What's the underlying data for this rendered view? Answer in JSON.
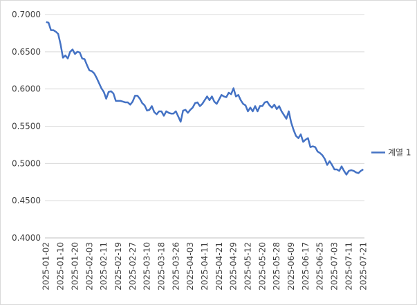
{
  "chart_data": {
    "type": "line",
    "categories": [
      "2025-01-02",
      null,
      null,
      null,
      null,
      null,
      "2025-01-10",
      null,
      null,
      null,
      null,
      null,
      "2025-01-20",
      null,
      null,
      null,
      null,
      null,
      "2025-02-03",
      null,
      null,
      null,
      null,
      null,
      "2025-02-11",
      null,
      null,
      null,
      null,
      null,
      "2025-02-19",
      null,
      null,
      null,
      null,
      null,
      "2025-02-27",
      null,
      null,
      null,
      null,
      null,
      "2025-03-10",
      null,
      null,
      null,
      null,
      null,
      "2025-03-18",
      null,
      null,
      null,
      null,
      null,
      "2025-03-26",
      null,
      null,
      null,
      null,
      null,
      "2025-04-03",
      null,
      null,
      null,
      null,
      null,
      "2025-04-11",
      null,
      null,
      null,
      null,
      null,
      "2025-04-21",
      null,
      null,
      null,
      null,
      null,
      "2025-04-29",
      null,
      null,
      null,
      null,
      null,
      "2025-05-12",
      null,
      null,
      null,
      null,
      null,
      "2025-05-20",
      null,
      null,
      null,
      null,
      null,
      "2025-05-28",
      null,
      null,
      null,
      null,
      null,
      "2025-06-09",
      null,
      null,
      null,
      null,
      null,
      "2025-06-17",
      null,
      null,
      null,
      null,
      null,
      "2025-06-25",
      null,
      null,
      null,
      null,
      null,
      "2025-07-03",
      null,
      null,
      null,
      null,
      null,
      "2025-07-11",
      null,
      null,
      null,
      null,
      null,
      "2025-07-21"
    ],
    "series": [
      {
        "name": "계열 1",
        "color": "#4472c4",
        "values": [
          0.69,
          0.689,
          0.679,
          0.679,
          0.677,
          0.674,
          0.66,
          0.642,
          0.645,
          0.641,
          0.65,
          0.653,
          0.647,
          0.65,
          0.649,
          0.641,
          0.64,
          0.632,
          0.625,
          0.624,
          0.621,
          0.615,
          0.608,
          0.601,
          0.596,
          0.587,
          0.596,
          0.597,
          0.594,
          0.584,
          0.584,
          0.584,
          0.583,
          0.582,
          0.582,
          0.579,
          0.583,
          0.591,
          0.591,
          0.587,
          0.581,
          0.578,
          0.571,
          0.572,
          0.577,
          0.569,
          0.566,
          0.57,
          0.57,
          0.564,
          0.57,
          0.568,
          0.567,
          0.567,
          0.57,
          0.563,
          0.556,
          0.571,
          0.572,
          0.568,
          0.572,
          0.575,
          0.581,
          0.582,
          0.577,
          0.58,
          0.585,
          0.59,
          0.585,
          0.59,
          0.583,
          0.58,
          0.586,
          0.592,
          0.59,
          0.589,
          0.595,
          0.593,
          0.601,
          0.59,
          0.592,
          0.585,
          0.58,
          0.578,
          0.57,
          0.575,
          0.57,
          0.577,
          0.57,
          0.577,
          0.577,
          0.582,
          0.583,
          0.578,
          0.575,
          0.579,
          0.573,
          0.577,
          0.57,
          0.565,
          0.56,
          0.57,
          0.555,
          0.545,
          0.537,
          0.534,
          0.539,
          0.529,
          0.532,
          0.534,
          0.522,
          0.523,
          0.522,
          0.516,
          0.514,
          0.511,
          0.506,
          0.498,
          0.503,
          0.498,
          0.492,
          0.492,
          0.49,
          0.496,
          0.49,
          0.485,
          0.49,
          0.491,
          0.49,
          0.488,
          0.487,
          0.49,
          0.492
        ]
      }
    ],
    "ylim": [
      0.4,
      0.7
    ],
    "yticks": [
      {
        "value": 0.4,
        "label": "0.4000"
      },
      {
        "value": 0.45,
        "label": "0.4500"
      },
      {
        "value": 0.5,
        "label": "0.5000"
      },
      {
        "value": 0.55,
        "label": "0.5500"
      },
      {
        "value": 0.6,
        "label": "0.6000"
      },
      {
        "value": 0.65,
        "label": "0.6500"
      },
      {
        "value": 0.7,
        "label": "0.7000"
      }
    ],
    "grid": true,
    "legend": "right"
  }
}
